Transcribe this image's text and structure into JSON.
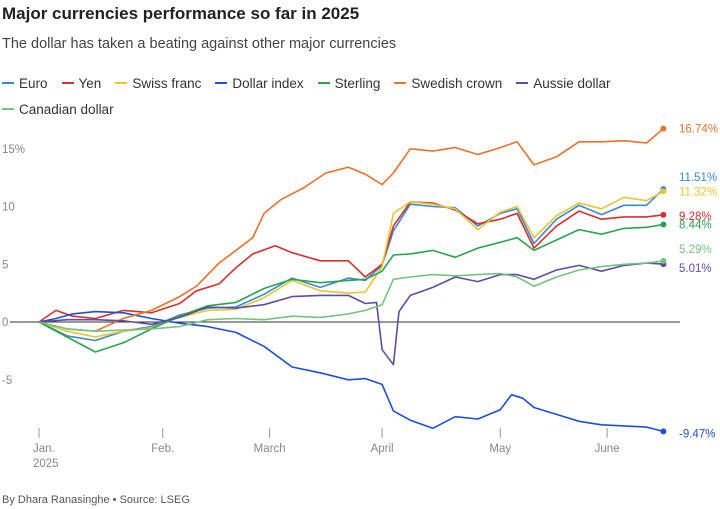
{
  "header": {
    "title": "Major currencies performance so far in 2025",
    "subtitle": "The dollar has taken a beating against other major currencies"
  },
  "footer": {
    "credit": "By Dhara Ranasinghe • Source: LSEG"
  },
  "chart_data": {
    "type": "line",
    "title": "Major currencies performance so far in 2025",
    "subtitle": "The dollar has taken a beating against other major currencies",
    "xlabel": "",
    "ylabel": "",
    "x_unit": "trading day index (0 = Jan. 1 2025)",
    "x_range": [
      0,
      112
    ],
    "ylim": [
      -10,
      17
    ],
    "y_unit": "%",
    "y_ticks": [
      {
        "value": 15,
        "label": "15%"
      },
      {
        "value": 10,
        "label": "10"
      },
      {
        "value": 5,
        "label": "5"
      },
      {
        "value": 0,
        "label": "0"
      },
      {
        "value": -5,
        "label": "-5"
      }
    ],
    "x_ticks": [
      {
        "x": 0,
        "label": "Jan.",
        "sublabel": "2025"
      },
      {
        "x": 22,
        "label": "Feb."
      },
      {
        "x": 41,
        "label": "March"
      },
      {
        "x": 61,
        "label": "April"
      },
      {
        "x": 82,
        "label": "May"
      },
      {
        "x": 101,
        "label": "June"
      }
    ],
    "grid": false,
    "legend_position": "top",
    "series": [
      {
        "name": "Euro",
        "color": "#3a8ad0",
        "end_label": "11.51%",
        "points": [
          [
            0,
            0
          ],
          [
            5,
            -1.2
          ],
          [
            10,
            -1.6
          ],
          [
            15,
            -0.8
          ],
          [
            20,
            -0.4
          ],
          [
            25,
            0.6
          ],
          [
            30,
            1.2
          ],
          [
            35,
            1.3
          ],
          [
            40,
            2.4
          ],
          [
            45,
            3.8
          ],
          [
            50,
            3.0
          ],
          [
            55,
            3.8
          ],
          [
            58,
            3.6
          ],
          [
            61,
            4.9
          ],
          [
            63,
            7.9
          ],
          [
            66,
            10.2
          ],
          [
            70,
            10.0
          ],
          [
            74,
            9.9
          ],
          [
            78,
            8.3
          ],
          [
            82,
            9.4
          ],
          [
            85,
            9.8
          ],
          [
            88,
            6.8
          ],
          [
            92,
            8.9
          ],
          [
            96,
            10.1
          ],
          [
            100,
            9.3
          ],
          [
            104,
            10.1
          ],
          [
            108,
            10.1
          ],
          [
            111,
            11.51
          ]
        ]
      },
      {
        "name": "Yen",
        "color": "#d4302e",
        "end_label": "9.28%",
        "points": [
          [
            0,
            0
          ],
          [
            3,
            1.0
          ],
          [
            6,
            0.5
          ],
          [
            10,
            0.3
          ],
          [
            15,
            1.0
          ],
          [
            20,
            0.8
          ],
          [
            25,
            1.6
          ],
          [
            28,
            2.7
          ],
          [
            32,
            3.3
          ],
          [
            35,
            4.7
          ],
          [
            38,
            5.9
          ],
          [
            42,
            6.6
          ],
          [
            45,
            6.0
          ],
          [
            50,
            5.3
          ],
          [
            55,
            5.3
          ],
          [
            58,
            3.9
          ],
          [
            61,
            5.0
          ],
          [
            63,
            8.3
          ],
          [
            66,
            10.4
          ],
          [
            70,
            10.3
          ],
          [
            74,
            9.7
          ],
          [
            78,
            8.5
          ],
          [
            82,
            8.9
          ],
          [
            85,
            9.4
          ],
          [
            88,
            6.4
          ],
          [
            92,
            8.3
          ],
          [
            96,
            9.6
          ],
          [
            100,
            8.9
          ],
          [
            104,
            9.1
          ],
          [
            108,
            9.1
          ],
          [
            111,
            9.28
          ]
        ]
      },
      {
        "name": "Swiss franc",
        "color": "#e8c531",
        "end_label": "11.32%",
        "points": [
          [
            0,
            0
          ],
          [
            5,
            -0.8
          ],
          [
            10,
            -1.3
          ],
          [
            15,
            -0.8
          ],
          [
            20,
            -0.5
          ],
          [
            25,
            0.4
          ],
          [
            30,
            1.0
          ],
          [
            35,
            1.1
          ],
          [
            40,
            2.1
          ],
          [
            45,
            3.6
          ],
          [
            50,
            2.7
          ],
          [
            55,
            2.5
          ],
          [
            58,
            2.6
          ],
          [
            61,
            4.8
          ],
          [
            63,
            9.4
          ],
          [
            66,
            10.4
          ],
          [
            70,
            10.2
          ],
          [
            74,
            9.8
          ],
          [
            78,
            8.0
          ],
          [
            82,
            9.5
          ],
          [
            85,
            10.0
          ],
          [
            88,
            7.3
          ],
          [
            92,
            9.2
          ],
          [
            96,
            10.3
          ],
          [
            100,
            9.8
          ],
          [
            104,
            10.8
          ],
          [
            108,
            10.5
          ],
          [
            111,
            11.32
          ]
        ]
      },
      {
        "name": "Dollar index",
        "color": "#1e4fd8",
        "end_label": "-9.47%",
        "points": [
          [
            0,
            0
          ],
          [
            3,
            0.3
          ],
          [
            6,
            0.7
          ],
          [
            10,
            0.9
          ],
          [
            15,
            0.8
          ],
          [
            20,
            0.3
          ],
          [
            25,
            -0.1
          ],
          [
            30,
            -0.4
          ],
          [
            35,
            -0.9
          ],
          [
            40,
            -2.1
          ],
          [
            45,
            -3.9
          ],
          [
            50,
            -4.4
          ],
          [
            55,
            -5.0
          ],
          [
            58,
            -4.9
          ],
          [
            61,
            -5.4
          ],
          [
            63,
            -7.7
          ],
          [
            66,
            -8.5
          ],
          [
            70,
            -9.2
          ],
          [
            74,
            -8.2
          ],
          [
            78,
            -8.4
          ],
          [
            82,
            -7.6
          ],
          [
            84,
            -6.3
          ],
          [
            86,
            -6.6
          ],
          [
            88,
            -7.4
          ],
          [
            92,
            -8.0
          ],
          [
            96,
            -8.6
          ],
          [
            100,
            -8.9
          ],
          [
            104,
            -9.0
          ],
          [
            108,
            -9.1
          ],
          [
            111,
            -9.47
          ]
        ]
      },
      {
        "name": "Sterling",
        "color": "#2ca34e",
        "end_label": "8.44%",
        "points": [
          [
            0,
            0
          ],
          [
            5,
            -1.3
          ],
          [
            10,
            -2.6
          ],
          [
            15,
            -1.8
          ],
          [
            20,
            -0.6
          ],
          [
            25,
            0.5
          ],
          [
            30,
            1.4
          ],
          [
            35,
            1.7
          ],
          [
            40,
            2.9
          ],
          [
            45,
            3.7
          ],
          [
            50,
            3.4
          ],
          [
            55,
            3.6
          ],
          [
            58,
            3.7
          ],
          [
            61,
            4.4
          ],
          [
            63,
            5.8
          ],
          [
            66,
            5.9
          ],
          [
            70,
            6.2
          ],
          [
            74,
            5.6
          ],
          [
            78,
            6.4
          ],
          [
            82,
            6.9
          ],
          [
            85,
            7.3
          ],
          [
            88,
            6.2
          ],
          [
            92,
            7.1
          ],
          [
            96,
            8.0
          ],
          [
            100,
            7.6
          ],
          [
            104,
            8.1
          ],
          [
            108,
            8.2
          ],
          [
            111,
            8.44
          ]
        ]
      },
      {
        "name": "Swedish crown",
        "color": "#e9722c",
        "end_label": "16.74%",
        "points": [
          [
            0,
            0
          ],
          [
            5,
            -0.6
          ],
          [
            10,
            -0.8
          ],
          [
            15,
            0.3
          ],
          [
            20,
            1.0
          ],
          [
            25,
            2.2
          ],
          [
            28,
            3.1
          ],
          [
            32,
            5.1
          ],
          [
            35,
            6.2
          ],
          [
            38,
            7.3
          ],
          [
            40,
            9.4
          ],
          [
            43,
            10.6
          ],
          [
            47,
            11.6
          ],
          [
            51,
            12.9
          ],
          [
            55,
            13.4
          ],
          [
            58,
            12.8
          ],
          [
            61,
            11.9
          ],
          [
            63,
            12.9
          ],
          [
            66,
            15.0
          ],
          [
            70,
            14.8
          ],
          [
            74,
            15.1
          ],
          [
            78,
            14.5
          ],
          [
            82,
            15.1
          ],
          [
            85,
            15.6
          ],
          [
            88,
            13.6
          ],
          [
            92,
            14.3
          ],
          [
            96,
            15.6
          ],
          [
            100,
            15.6
          ],
          [
            104,
            15.7
          ],
          [
            108,
            15.5
          ],
          [
            111,
            16.74
          ]
        ]
      },
      {
        "name": "Aussie dollar",
        "color": "#5b4ea5",
        "end_label": "5.01%",
        "points": [
          [
            0,
            0
          ],
          [
            5,
            0.2
          ],
          [
            10,
            0.2
          ],
          [
            15,
            0.1
          ],
          [
            20,
            -0.2
          ],
          [
            25,
            0.4
          ],
          [
            30,
            1.3
          ],
          [
            35,
            1.2
          ],
          [
            40,
            1.5
          ],
          [
            45,
            2.2
          ],
          [
            50,
            2.3
          ],
          [
            55,
            2.3
          ],
          [
            58,
            1.6
          ],
          [
            60,
            1.7
          ],
          [
            61,
            -2.4
          ],
          [
            63,
            -3.7
          ],
          [
            64,
            0.9
          ],
          [
            66,
            2.3
          ],
          [
            70,
            3.0
          ],
          [
            74,
            3.9
          ],
          [
            78,
            3.5
          ],
          [
            82,
            4.1
          ],
          [
            85,
            4.1
          ],
          [
            88,
            3.7
          ],
          [
            92,
            4.5
          ],
          [
            96,
            4.9
          ],
          [
            100,
            4.4
          ],
          [
            104,
            4.9
          ],
          [
            108,
            5.1
          ],
          [
            111,
            5.01
          ]
        ]
      },
      {
        "name": "Canadian dollar",
        "color": "#76c27e",
        "end_label": "5.29%",
        "points": [
          [
            0,
            0
          ],
          [
            5,
            -0.6
          ],
          [
            10,
            -0.8
          ],
          [
            15,
            -0.7
          ],
          [
            20,
            -0.6
          ],
          [
            25,
            -0.4
          ],
          [
            30,
            0.2
          ],
          [
            35,
            0.3
          ],
          [
            40,
            0.2
          ],
          [
            45,
            0.5
          ],
          [
            50,
            0.4
          ],
          [
            55,
            0.7
          ],
          [
            58,
            1.0
          ],
          [
            61,
            1.5
          ],
          [
            63,
            3.7
          ],
          [
            66,
            3.9
          ],
          [
            70,
            4.1
          ],
          [
            74,
            4.0
          ],
          [
            78,
            4.1
          ],
          [
            82,
            4.2
          ],
          [
            85,
            3.9
          ],
          [
            88,
            3.1
          ],
          [
            92,
            3.9
          ],
          [
            96,
            4.5
          ],
          [
            100,
            4.8
          ],
          [
            104,
            5.0
          ],
          [
            108,
            5.1
          ],
          [
            111,
            5.29
          ]
        ]
      }
    ]
  }
}
